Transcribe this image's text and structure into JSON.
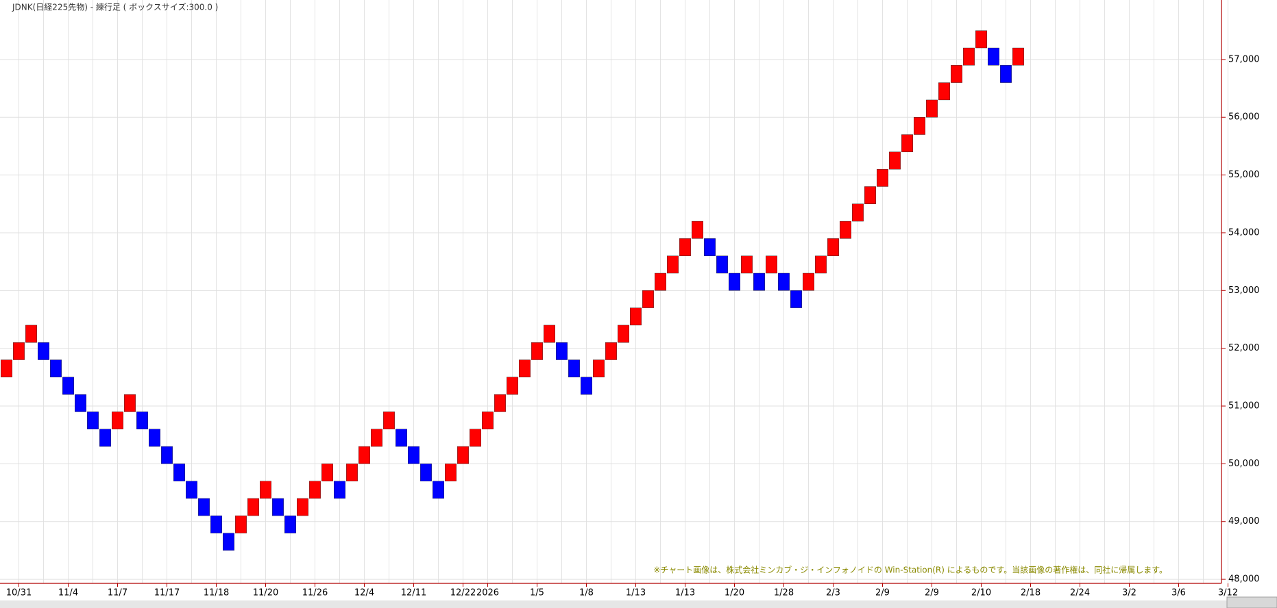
{
  "chart_data": {
    "type": "renko",
    "title": "JDNK(日経225先物) - 練行足 ( ボックスサイズ:300.0 )",
    "note": "※チャート画像は、株式会社ミンカブ・ジ・インフォノイドの Win-Station(R) によるものです。当該画像の著作権は、同社に帰属します。",
    "up_color": "#ff0000",
    "down_color": "#0000ff",
    "grid": true,
    "categories": [
      null,
      "10/31",
      null,
      null,
      null,
      "11/4",
      null,
      null,
      null,
      "11/7",
      null,
      null,
      null,
      "11/17",
      null,
      null,
      null,
      "11/18",
      null,
      null,
      null,
      "11/20",
      null,
      null,
      null,
      "11/26",
      null,
      null,
      null,
      "12/4",
      null,
      null,
      null,
      "12/11",
      null,
      null,
      null,
      "12/22",
      null,
      "2026",
      null,
      null,
      null,
      "1/5",
      null,
      null,
      null,
      "1/8",
      null,
      null,
      null,
      "1/13",
      null,
      null,
      null,
      "1/13",
      null,
      null,
      null,
      "1/20",
      null,
      null,
      null,
      "1/28",
      null,
      null,
      null,
      "2/3",
      null,
      null,
      null,
      "2/9",
      null,
      null,
      null,
      "2/9",
      null,
      null,
      null,
      "2/10",
      null,
      null,
      null,
      "2/18",
      null,
      null,
      null,
      "2/24",
      null,
      null,
      null,
      "3/2",
      null,
      null,
      null,
      "3/6",
      null,
      null,
      null,
      "3/12"
    ],
    "opens": [
      51500,
      51800,
      52100,
      52100,
      51800,
      51500,
      51200,
      50900,
      50600,
      50600,
      50900,
      50900,
      50600,
      50300,
      50000,
      49700,
      49400,
      49100,
      48800,
      48800,
      49100,
      49400,
      49400,
      49100,
      49100,
      49400,
      49700,
      49700,
      49700,
      50000,
      50300,
      50600,
      50600,
      50300,
      50000,
      49700,
      49700,
      50000,
      50300,
      50600,
      50900,
      51200,
      51500,
      51800,
      52100,
      52100,
      51800,
      51500,
      51500,
      51800,
      52100,
      52400,
      52700,
      53000,
      53300,
      53600,
      53900,
      53900,
      53600,
      53300,
      53300,
      53300,
      53300,
      53300,
      53000,
      53000,
      53300,
      53600,
      53900,
      54200,
      54500,
      54800,
      55100,
      55400,
      55700,
      56000,
      56300,
      56600,
      56900,
      57200,
      57200,
      56900,
      56900,
      null,
      null,
      null,
      null,
      null,
      null,
      null,
      null,
      null,
      null,
      null,
      null,
      null,
      null,
      null,
      null,
      null
    ],
    "closes": [
      51800,
      52100,
      52400,
      51800,
      51500,
      51200,
      50900,
      50600,
      50300,
      50900,
      51200,
      50600,
      50300,
      50000,
      49700,
      49400,
      49100,
      48800,
      48500,
      49100,
      49400,
      49700,
      49100,
      48800,
      49400,
      49700,
      50000,
      49400,
      50000,
      50300,
      50600,
      50900,
      50300,
      50000,
      49700,
      49400,
      50000,
      50300,
      50600,
      50900,
      51200,
      51500,
      51800,
      52100,
      52400,
      51800,
      51500,
      51200,
      51800,
      52100,
      52400,
      52700,
      53000,
      53300,
      53600,
      53900,
      54200,
      53600,
      53300,
      53000,
      53600,
      53000,
      53600,
      53000,
      52700,
      53300,
      53600,
      53900,
      54200,
      54500,
      54800,
      55100,
      55400,
      55700,
      56000,
      56300,
      56600,
      56900,
      57200,
      57500,
      56900,
      56600,
      57200,
      null,
      null,
      null,
      null,
      null,
      null,
      null,
      null,
      null,
      null,
      null,
      null,
      null,
      null,
      null,
      null,
      null
    ],
    "ylim": [
      47930,
      58030
    ],
    "yticks": [
      {
        "value": 48000,
        "label": "48,000"
      },
      {
        "value": 49000,
        "label": "49,000"
      },
      {
        "value": 50000,
        "label": "50,000"
      },
      {
        "value": 51000,
        "label": "51,000"
      },
      {
        "value": 52000,
        "label": "52,000"
      },
      {
        "value": 53000,
        "label": "53,000"
      },
      {
        "value": 54000,
        "label": "54,000"
      },
      {
        "value": 55000,
        "label": "55,000"
      },
      {
        "value": 56000,
        "label": "56,000"
      },
      {
        "value": 57000,
        "label": "57,000"
      }
    ]
  }
}
